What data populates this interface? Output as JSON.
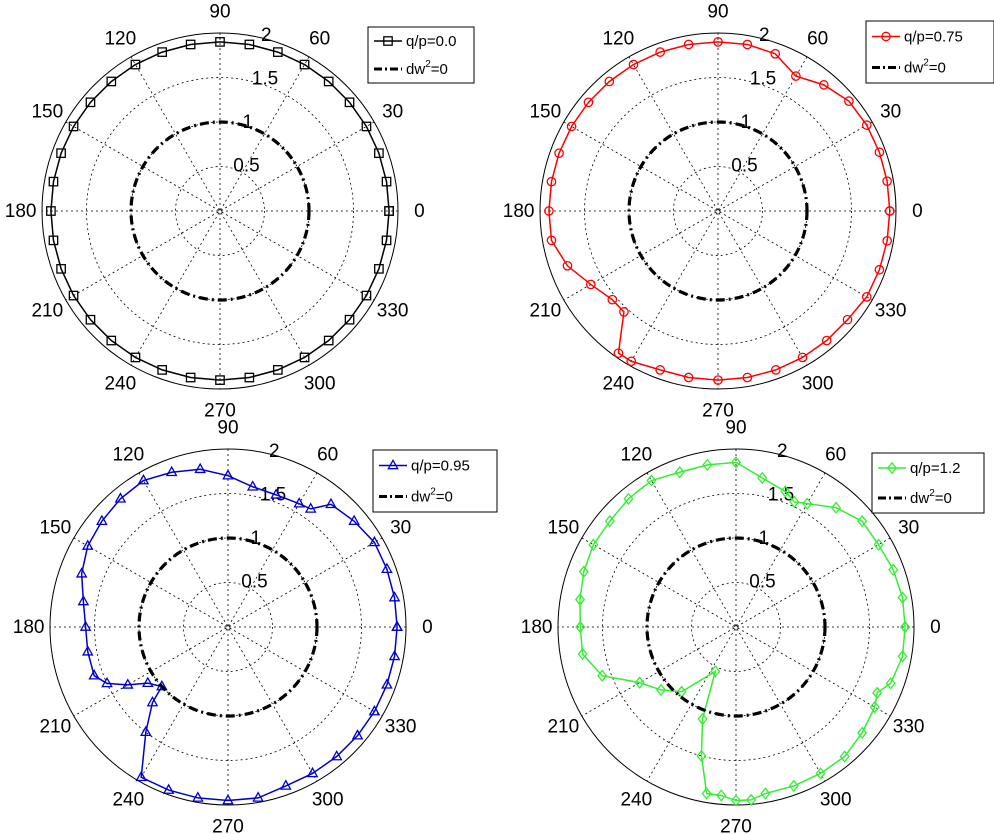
{
  "chart_data": [
    {
      "type": "polar",
      "r_range": [
        0,
        2
      ],
      "angle_ticks": [
        "0",
        "30",
        "60",
        "90",
        "120",
        "150",
        "180",
        "210",
        "240",
        "270",
        "300",
        "330"
      ],
      "radial_ticks": [
        "0.5",
        "1",
        "1.5",
        "2"
      ],
      "grid": true,
      "legend_position": "top-right",
      "series": [
        {
          "name": "q/p=0.0",
          "color": "#000000",
          "marker": "square",
          "angles": [
            0,
            10,
            20,
            30,
            40,
            50,
            60,
            70,
            80,
            90,
            100,
            110,
            120,
            130,
            140,
            150,
            160,
            170,
            180,
            190,
            200,
            210,
            220,
            230,
            240,
            250,
            260,
            270,
            280,
            290,
            300,
            310,
            320,
            330,
            340,
            350,
            360
          ],
          "r": [
            1.9,
            1.9,
            1.9,
            1.9,
            1.9,
            1.9,
            1.9,
            1.9,
            1.9,
            1.9,
            1.9,
            1.9,
            1.9,
            1.9,
            1.9,
            1.9,
            1.9,
            1.9,
            1.9,
            1.9,
            1.9,
            1.9,
            1.9,
            1.9,
            1.9,
            1.9,
            1.9,
            1.9,
            1.9,
            1.9,
            1.9,
            1.9,
            1.9,
            1.9,
            1.9,
            1.9,
            1.9
          ]
        },
        {
          "name": "dw2=0",
          "color": "#000000",
          "style": "dash-dot",
          "angles": "full-circle",
          "r": 1.0
        }
      ],
      "legend": [
        {
          "label": "q/p=0.0",
          "sup": ""
        },
        {
          "label": "dw",
          "sup": "2",
          "suffix": "=0"
        }
      ]
    },
    {
      "type": "polar",
      "r_range": [
        0,
        2
      ],
      "angle_ticks": [
        "0",
        "30",
        "60",
        "90",
        "120",
        "150",
        "180",
        "210",
        "240",
        "270",
        "300",
        "330"
      ],
      "radial_ticks": [
        "0.5",
        "1",
        "1.5",
        "2"
      ],
      "grid": true,
      "legend_position": "top-right",
      "series": [
        {
          "name": "q/p=0.75",
          "color": "#ff0000",
          "marker": "circle",
          "angles": [
            0,
            10,
            20,
            30,
            40,
            50,
            60,
            70,
            80,
            90,
            100,
            110,
            120,
            130,
            140,
            150,
            160,
            170,
            180,
            190,
            200,
            210,
            220,
            227,
            235,
            240,
            250,
            260,
            270,
            280,
            290,
            300,
            310,
            320,
            330,
            340,
            350,
            360
          ],
          "r": [
            1.93,
            1.93,
            1.93,
            1.93,
            1.92,
            1.85,
            1.75,
            1.88,
            1.9,
            1.9,
            1.9,
            1.9,
            1.9,
            1.9,
            1.9,
            1.9,
            1.9,
            1.9,
            1.9,
            1.9,
            1.8,
            1.65,
            1.55,
            1.55,
            1.95,
            1.95,
            1.9,
            1.9,
            1.9,
            1.9,
            1.9,
            1.9,
            1.9,
            1.9,
            1.93,
            1.93,
            1.93,
            1.93
          ]
        },
        {
          "name": "dw2=0",
          "color": "#000000",
          "style": "dash-dot",
          "angles": "full-circle",
          "r": 1.0
        }
      ],
      "legend": [
        {
          "label": "q/p=0.75",
          "sup": ""
        },
        {
          "label": "dw",
          "sup": "2",
          "suffix": "=0"
        }
      ]
    },
    {
      "type": "polar",
      "r_range": [
        0,
        2
      ],
      "angle_ticks": [
        "0",
        "30",
        "60",
        "90",
        "120",
        "150",
        "180",
        "210",
        "240",
        "270",
        "300",
        "330"
      ],
      "radial_ticks": [
        "0.5",
        "1",
        "1.5",
        "2"
      ],
      "grid": true,
      "legend_position": "top-right",
      "series": [
        {
          "name": "q/p=0.95",
          "color": "#0000cc",
          "marker": "triangle",
          "angles": [
            0,
            10,
            20,
            30,
            40,
            50,
            55,
            60,
            70,
            80,
            90,
            100,
            110,
            120,
            130,
            140,
            150,
            160,
            170,
            180,
            190,
            200,
            205,
            210,
            215,
            222,
            225,
            232,
            240,
            250,
            260,
            270,
            280,
            290,
            300,
            310,
            320,
            330,
            340,
            350,
            360
          ],
          "r": [
            1.9,
            1.9,
            1.9,
            1.9,
            1.85,
            1.8,
            1.62,
            1.6,
            1.58,
            1.6,
            1.7,
            1.8,
            1.85,
            1.9,
            1.88,
            1.85,
            1.82,
            1.75,
            1.65,
            1.6,
            1.6,
            1.6,
            1.5,
            1.3,
            1.1,
            1.0,
            1.2,
            1.5,
            1.95,
            1.95,
            1.95,
            1.95,
            1.95,
            1.9,
            1.9,
            1.9,
            1.9,
            1.9,
            1.9,
            1.9,
            1.9
          ]
        },
        {
          "name": "dw2=0",
          "color": "#000000",
          "style": "dash-dot",
          "angles": "full-circle",
          "r": 1.0
        }
      ],
      "legend": [
        {
          "label": "q/p=0.95",
          "sup": ""
        },
        {
          "label": "dw",
          "sup": "2",
          "suffix": "=0"
        }
      ]
    },
    {
      "type": "polar",
      "r_range": [
        0,
        2
      ],
      "angle_ticks": [
        "0",
        "30",
        "60",
        "90",
        "120",
        "150",
        "180",
        "210",
        "240",
        "270",
        "300",
        "330"
      ],
      "radial_ticks": [
        "0.5",
        "1",
        "1.5",
        "2"
      ],
      "grid": true,
      "legend_position": "top-right",
      "series": [
        {
          "name": "q/p=1.2",
          "color": "#33ee33",
          "marker": "diamond",
          "angles": [
            0,
            10,
            20,
            30,
            40,
            50,
            60,
            65,
            70,
            80,
            90,
            100,
            110,
            120,
            130,
            140,
            150,
            160,
            170,
            180,
            190,
            200,
            210,
            220,
            230,
            245,
            250,
            255,
            260,
            265,
            270,
            275,
            280,
            290,
            300,
            310,
            320,
            330,
            335,
            340,
            350,
            360
          ],
          "r": [
            1.9,
            1.9,
            1.88,
            1.85,
            1.85,
            1.75,
            1.6,
            1.55,
            1.62,
            1.7,
            1.85,
            1.85,
            1.85,
            1.9,
            1.88,
            1.85,
            1.85,
            1.82,
            1.78,
            1.75,
            1.75,
            1.6,
            1.25,
            1.1,
            0.95,
            0.55,
            1.1,
            1.5,
            1.9,
            1.9,
            1.95,
            1.95,
            1.9,
            1.9,
            1.9,
            1.9,
            1.85,
            1.8,
            1.75,
            1.85,
            1.9,
            1.9
          ]
        },
        {
          "name": "dw2=0",
          "color": "#000000",
          "style": "dash-dot",
          "angles": "full-circle",
          "r": 1.0
        }
      ],
      "legend": [
        {
          "label": "q/p=1.2",
          "sup": ""
        },
        {
          "label": "dw",
          "sup": "2",
          "suffix": "=0"
        }
      ]
    }
  ]
}
